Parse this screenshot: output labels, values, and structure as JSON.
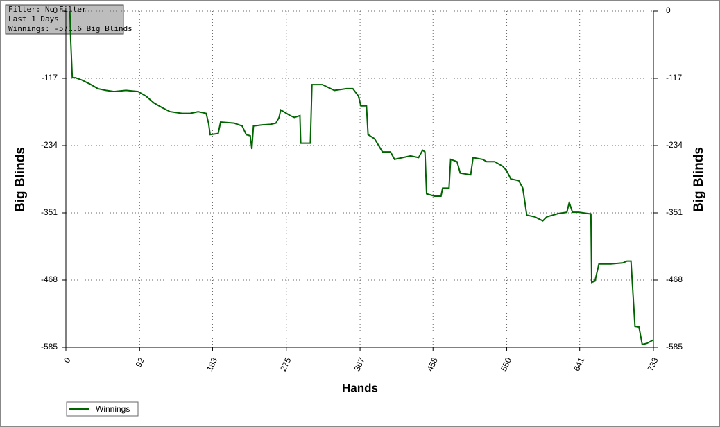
{
  "chart_data": {
    "type": "line",
    "annotations": [
      "Filter: No Filter",
      "Last  1 Days",
      "Winnings: -571.6 Big Blinds"
    ],
    "xlabel": "Hands",
    "ylabel": "Big Blinds",
    "y2label": "Big Blinds",
    "xlim": [
      0,
      733
    ],
    "ylim": [
      -585,
      0
    ],
    "y2lim": [
      -585,
      0
    ],
    "xticks": [
      0,
      92,
      183,
      275,
      367,
      458,
      550,
      641,
      733
    ],
    "yticks": [
      0,
      -117,
      -234,
      -351,
      -468,
      -585
    ],
    "y2ticks": [
      0,
      -117,
      -234,
      -351,
      -468,
      -585
    ],
    "grid": true,
    "legend": "bottom left",
    "x": [
      5,
      6,
      8,
      12,
      20,
      30,
      40,
      50,
      60,
      75,
      90,
      100,
      110,
      120,
      130,
      145,
      155,
      165,
      175,
      178,
      180,
      190,
      193,
      210,
      220,
      225,
      230,
      232,
      234,
      245,
      255,
      262,
      266,
      268,
      280,
      285,
      292,
      293,
      305,
      307,
      320,
      335,
      350,
      358,
      365,
      368,
      375,
      377,
      385,
      395,
      405,
      410,
      420,
      430,
      440,
      445,
      448,
      450,
      460,
      468,
      470,
      478,
      480,
      488,
      492,
      505,
      508,
      520,
      525,
      535,
      545,
      550,
      555,
      565,
      570,
      575,
      585,
      595,
      600,
      615,
      625,
      628,
      632,
      640,
      655,
      656,
      660,
      665,
      680,
      695,
      700,
      705,
      710,
      715,
      719,
      725,
      733
    ],
    "series": [
      {
        "name": "Winnings",
        "color": "#006400",
        "axis": "y",
        "values": [
          0,
          -50,
          -116,
          -116,
          -120,
          -127,
          -135,
          -138,
          -140,
          -138,
          -140,
          -148,
          -160,
          -168,
          -175,
          -178,
          -178,
          -175,
          -178,
          -195,
          -215,
          -213,
          -193,
          -195,
          -200,
          -215,
          -217,
          -240,
          -200,
          -198,
          -197,
          -195,
          -185,
          -172,
          -182,
          -185,
          -182,
          -230,
          -230,
          -128,
          -128,
          -138,
          -135,
          -135,
          -148,
          -165,
          -165,
          -215,
          -222,
          -245,
          -245,
          -258,
          -255,
          -252,
          -255,
          -242,
          -245,
          -318,
          -322,
          -322,
          -308,
          -308,
          -258,
          -262,
          -282,
          -285,
          -255,
          -258,
          -262,
          -262,
          -270,
          -278,
          -292,
          -295,
          -308,
          -355,
          -358,
          -365,
          -358,
          -352,
          -350,
          -333,
          -350,
          -350,
          -353,
          -472,
          -470,
          -440,
          -440,
          -438,
          -435,
          -435,
          -549,
          -550,
          -580,
          -578,
          -572
        ]
      }
    ]
  }
}
